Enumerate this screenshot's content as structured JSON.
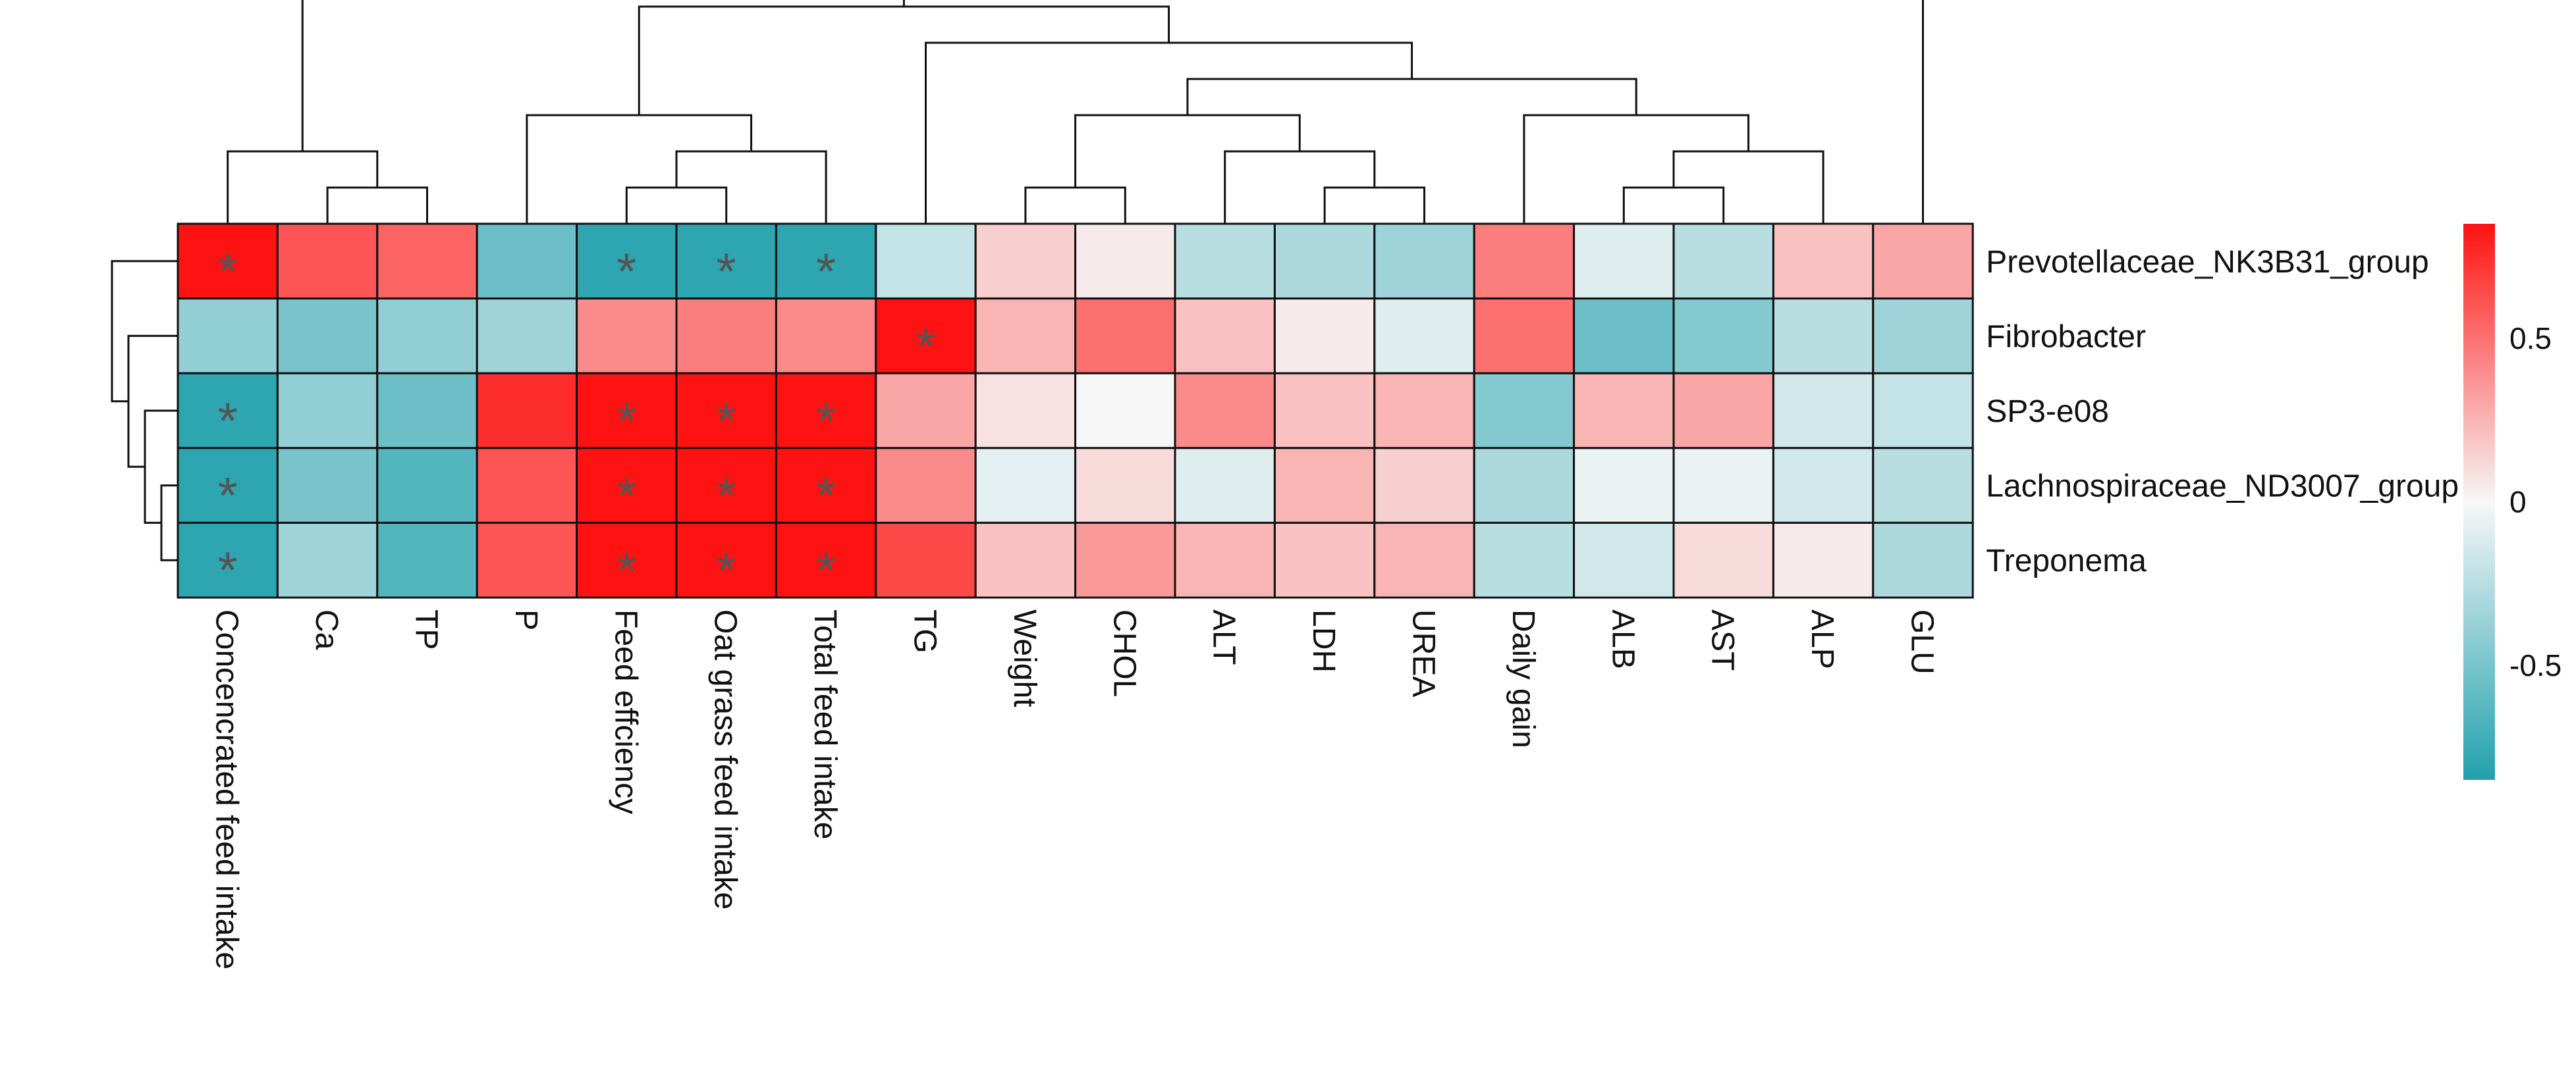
{
  "chart_data": {
    "type": "heatmap",
    "title": "",
    "rows": [
      "Prevotellaceae_NK3B31_group",
      "Fibrobacter",
      "SP3-e08",
      "Lachnospiraceae_ND3007_group",
      "Treponema"
    ],
    "columns": [
      "Concencrated feed intake",
      "Ca",
      "TP",
      "P",
      "Feed effciency",
      "Oat grass feed intake",
      "Total feed intake",
      "TG",
      "Weight",
      "CHOL",
      "ALT",
      "LDH",
      "UREA",
      "Daily gain",
      "ALB",
      "AST",
      "ALP",
      "GLU"
    ],
    "values": [
      [
        0.85,
        0.6,
        0.55,
        -0.55,
        -0.8,
        -0.8,
        -0.8,
        -0.2,
        0.15,
        0.05,
        -0.25,
        -0.3,
        -0.35,
        0.45,
        -0.1,
        -0.25,
        0.2,
        0.3
      ],
      [
        -0.4,
        -0.5,
        -0.4,
        -0.35,
        0.4,
        0.45,
        0.4,
        0.9,
        0.25,
        0.5,
        0.2,
        0.05,
        -0.1,
        0.5,
        -0.55,
        -0.45,
        -0.25,
        -0.35
      ],
      [
        -0.8,
        -0.4,
        -0.55,
        0.75,
        0.9,
        0.9,
        0.9,
        0.3,
        0.08,
        0.0,
        0.4,
        0.2,
        0.25,
        -0.45,
        0.25,
        0.3,
        -0.15,
        -0.2
      ],
      [
        -0.8,
        -0.5,
        -0.65,
        0.6,
        0.9,
        0.9,
        0.9,
        0.4,
        -0.08,
        0.1,
        -0.1,
        0.25,
        0.15,
        -0.3,
        -0.05,
        -0.05,
        -0.15,
        -0.25
      ],
      [
        -0.8,
        -0.35,
        -0.65,
        0.6,
        0.9,
        0.9,
        0.9,
        0.65,
        0.2,
        0.35,
        0.25,
        0.2,
        0.25,
        -0.25,
        -0.15,
        0.1,
        0.05,
        -0.3
      ]
    ],
    "significant": [
      [
        0,
        0
      ],
      [
        0,
        4
      ],
      [
        0,
        5
      ],
      [
        0,
        6
      ],
      [
        1,
        7
      ],
      [
        2,
        0
      ],
      [
        2,
        4
      ],
      [
        2,
        5
      ],
      [
        2,
        6
      ],
      [
        3,
        0
      ],
      [
        3,
        4
      ],
      [
        3,
        5
      ],
      [
        3,
        6
      ],
      [
        4,
        0
      ],
      [
        4,
        4
      ],
      [
        4,
        5
      ],
      [
        4,
        6
      ]
    ],
    "significance_marker": "*",
    "color_scale": {
      "min": -0.85,
      "max": 0.85,
      "low_color": "#20a1ad",
      "mid_color": "#f7f7f7",
      "high_color": "#ff1212",
      "ticks": [
        0.5,
        0,
        -0.5
      ],
      "tick_labels": [
        "0.5",
        "0",
        "-0.5"
      ]
    },
    "column_dendrogram": [
      [
        1,
        2
      ],
      [
        0,
        -1
      ],
      [
        14,
        15
      ],
      [
        -3,
        16
      ],
      [
        13,
        -4
      ],
      [
        11,
        12
      ],
      [
        10,
        -6
      ],
      [
        9,
        8
      ],
      [
        -8,
        -7
      ],
      [
        -9,
        -5
      ],
      [
        7,
        -10
      ],
      [
        4,
        5
      ],
      [
        -12,
        6
      ],
      [
        3,
        -13
      ],
      [
        -14,
        -11
      ],
      [
        -2,
        -15
      ],
      [
        17,
        -16
      ]
    ],
    "row_dendrogram": [
      [
        3,
        4
      ],
      [
        2,
        -1
      ],
      [
        1,
        -2
      ],
      [
        0,
        -3
      ]
    ]
  }
}
